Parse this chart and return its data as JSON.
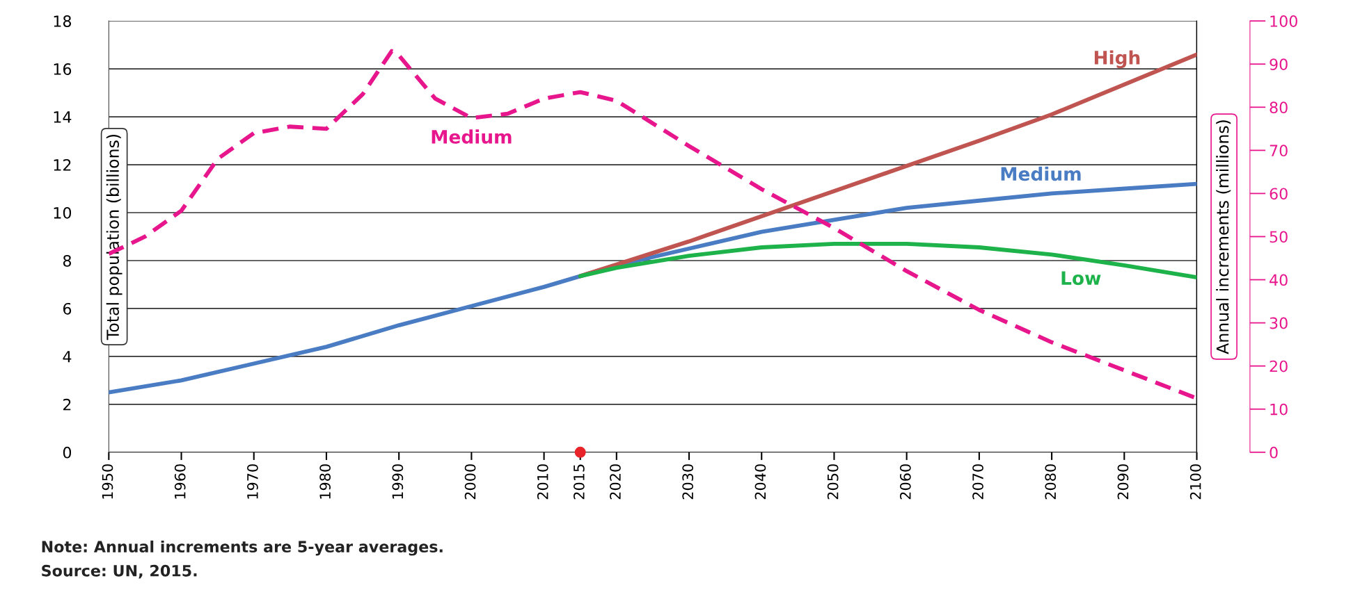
{
  "chart_data": {
    "type": "line",
    "ylabel": "Total population (billions)",
    "y2label": "Annual increments (millions)",
    "xlim": [
      1950,
      2100
    ],
    "xticks": [
      1950,
      1960,
      1970,
      1980,
      1990,
      2000,
      2010,
      2015,
      2020,
      2030,
      2040,
      2050,
      2060,
      2070,
      2080,
      2090,
      2100
    ],
    "ylim": [
      0,
      18
    ],
    "yticks": [
      0,
      2,
      4,
      6,
      8,
      10,
      12,
      14,
      16,
      18
    ],
    "y2lim": [
      0,
      100
    ],
    "y2ticks": [
      0,
      10,
      20,
      30,
      40,
      50,
      60,
      70,
      80,
      90,
      100
    ],
    "grid": "y",
    "legend": false,
    "marker": "none",
    "series": [
      {
        "name": "Medium",
        "color": "#e8168c",
        "axis": "y2",
        "line_style": "dashed",
        "x": [
          1950,
          1955,
          1960,
          1965,
          1970,
          1975,
          1980,
          1985,
          1989,
          1990,
          1995,
          2000,
          2005,
          2010,
          2015,
          2020,
          2030,
          2040,
          2050,
          2060,
          2070,
          2080,
          2090,
          2100
        ],
        "values": [
          46,
          50,
          56,
          68,
          74,
          75.5,
          75,
          83,
          93,
          92,
          82,
          77.5,
          78.5,
          82,
          83.5,
          81.5,
          71,
          61,
          52,
          42,
          33,
          25.5,
          19,
          12.5
        ]
      },
      {
        "name": "Medium",
        "color": "#4a7cc4",
        "line_style": "solid",
        "x": [
          1950,
          1960,
          1970,
          1980,
          1990,
          2000,
          2010,
          2015,
          2020,
          2030,
          2040,
          2050,
          2060,
          2070,
          2080,
          2090,
          2100
        ],
        "values": [
          2.5,
          3.0,
          3.7,
          4.4,
          5.3,
          6.1,
          6.9,
          7.35,
          7.8,
          8.5,
          9.2,
          9.7,
          10.2,
          10.5,
          10.8,
          11.0,
          11.2
        ]
      },
      {
        "name": "High",
        "color": "#bf5450",
        "line_style": "solid",
        "x": [
          2015,
          2030,
          2050,
          2070,
          2080,
          2100
        ],
        "values": [
          7.35,
          8.8,
          10.9,
          13.0,
          14.1,
          16.6
        ]
      },
      {
        "name": "Low",
        "color": "#1db24a",
        "line_style": "solid",
        "x": [
          2015,
          2020,
          2030,
          2040,
          2050,
          2060,
          2070,
          2080,
          2090,
          2100
        ],
        "values": [
          7.35,
          7.7,
          8.2,
          8.55,
          8.7,
          8.7,
          8.55,
          8.25,
          7.8,
          7.3
        ]
      },
      {
        "type": "scatter",
        "color": "#e8232a",
        "marker": "circle",
        "x": [
          2015
        ],
        "values": [
          0
        ]
      }
    ],
    "annotations": [
      "Note: Annual increments are 5-year averages.",
      "Source: UN, 2015."
    ]
  }
}
